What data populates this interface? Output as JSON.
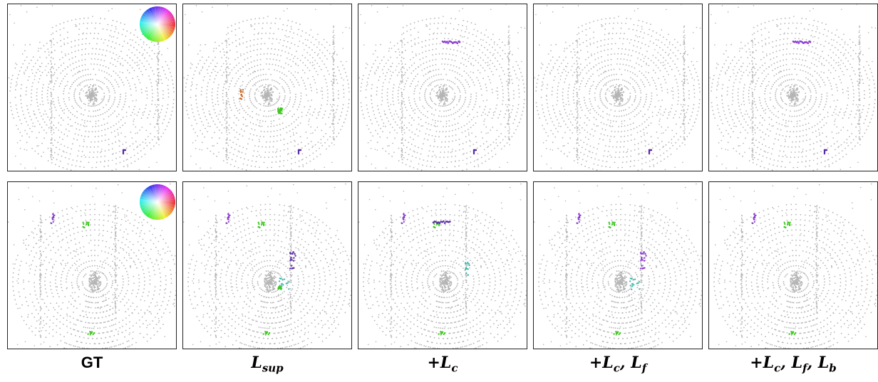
{
  "figure": {
    "rows": [
      "row-1",
      "row-2"
    ],
    "columns": [
      {
        "id": "gt",
        "label": "GT"
      },
      {
        "id": "sup",
        "label": "L",
        "sub": "sup"
      },
      {
        "id": "c",
        "label": "+L",
        "sub": "c"
      },
      {
        "id": "cf",
        "label": "+L",
        "sub": "c",
        "rest": ", L",
        "sub2": "f"
      },
      {
        "id": "cfb",
        "label": "+L",
        "sub": "c",
        "rest": ", L",
        "sub2": "f",
        "rest2": ", L",
        "sub3": "b"
      }
    ],
    "legend": {
      "type": "color-wheel",
      "description_icon": "flow-color-wheel-icon"
    },
    "colors": {
      "static_points": "#b5b5b5",
      "flow_purple": "#5a2ca8",
      "flow_green": "#3ec81e",
      "flow_cyan": "#29b7a8",
      "flow_orange": "#c8641e",
      "flow_violet": "#8a3ad0"
    }
  }
}
